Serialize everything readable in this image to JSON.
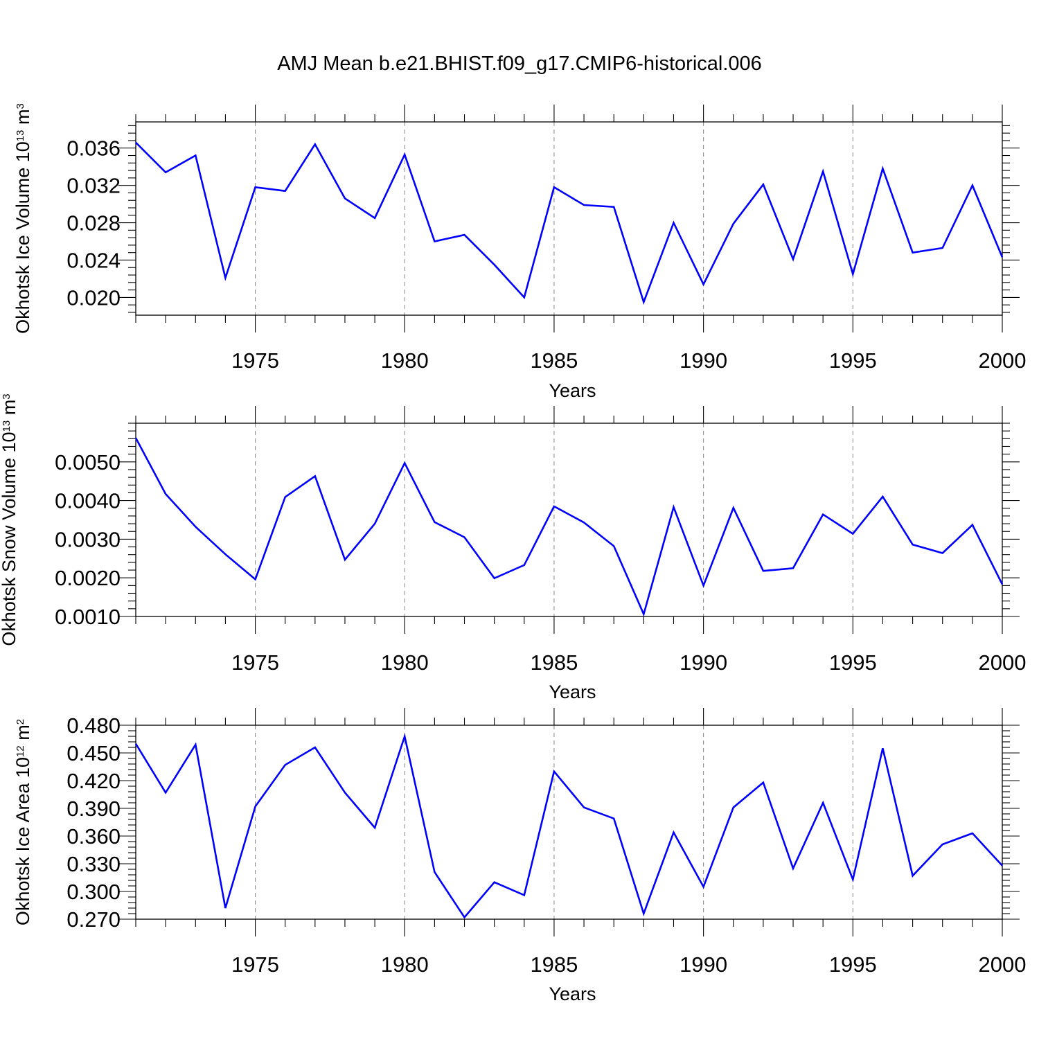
{
  "title": "AMJ Mean b.e21.BHIST.f09_g17.CMIP6-historical.006",
  "colors": {
    "line": "#0000ff",
    "grid": "#888888",
    "axis": "#000000"
  },
  "chart_data": [
    {
      "type": "line",
      "ylabel": "Okhotsk Ice Volume",
      "ylabel_unit": {
        "mantissa": "10",
        "exponent": "13",
        "unit": "m",
        "unit_exp": "3"
      },
      "xlabel": "Years",
      "xlim": [
        1971,
        2000
      ],
      "ylim": [
        0.0181,
        0.0388
      ],
      "x_ticks": [
        1975,
        1980,
        1985,
        1990,
        1995,
        2000
      ],
      "x_tick_labels": [
        "1975",
        "1980",
        "1985",
        "1990",
        "1995",
        "2000"
      ],
      "y_ticks": [
        0.02,
        0.024,
        0.028,
        0.032,
        0.036
      ],
      "y_tick_labels": [
        "0.020",
        "0.024",
        "0.028",
        "0.032",
        "0.036"
      ],
      "grid": "vertical dashed at major x ticks",
      "x": [
        1971,
        1972,
        1973,
        1974,
        1975,
        1976,
        1977,
        1978,
        1979,
        1980,
        1981,
        1982,
        1983,
        1984,
        1985,
        1986,
        1987,
        1988,
        1989,
        1990,
        1991,
        1992,
        1993,
        1994,
        1995,
        1996,
        1997,
        1998,
        1999,
        2000
      ],
      "values": [
        0.0366,
        0.0334,
        0.0352,
        0.0221,
        0.0318,
        0.0314,
        0.0364,
        0.0306,
        0.0285,
        0.0353,
        0.026,
        0.0267,
        0.0235,
        0.02,
        0.0318,
        0.0299,
        0.0297,
        0.0195,
        0.028,
        0.0214,
        0.0279,
        0.0321,
        0.0241,
        0.0335,
        0.0225,
        0.0338,
        0.0248,
        0.0253,
        0.032,
        0.0243
      ]
    },
    {
      "type": "line",
      "ylabel": "Okhotsk Snow Volume",
      "ylabel_unit": {
        "mantissa": "10",
        "exponent": "13",
        "unit": "m",
        "unit_exp": "3"
      },
      "xlabel": "Years",
      "xlim": [
        1971,
        2000
      ],
      "ylim": [
        0.001,
        0.006
      ],
      "x_ticks": [
        1975,
        1980,
        1985,
        1990,
        1995,
        2000
      ],
      "x_tick_labels": [
        "1975",
        "1980",
        "1985",
        "1990",
        "1995",
        "2000"
      ],
      "y_ticks": [
        0.001,
        0.002,
        0.003,
        0.004,
        0.005
      ],
      "y_tick_labels": [
        "0.0010",
        "0.0020",
        "0.0030",
        "0.0040",
        "0.0050"
      ],
      "grid": "vertical dashed at major x ticks",
      "x": [
        1971,
        1972,
        1973,
        1974,
        1975,
        1976,
        1977,
        1978,
        1979,
        1980,
        1981,
        1982,
        1983,
        1984,
        1985,
        1986,
        1987,
        1988,
        1989,
        1990,
        1991,
        1992,
        1993,
        1994,
        1995,
        1996,
        1997,
        1998,
        1999,
        2000
      ],
      "values": [
        0.00562,
        0.00417,
        0.00332,
        0.00261,
        0.00196,
        0.00409,
        0.00463,
        0.00247,
        0.0034,
        0.00497,
        0.00344,
        0.00305,
        0.00199,
        0.00233,
        0.00385,
        0.00343,
        0.00282,
        0.00106,
        0.00383,
        0.0018,
        0.00381,
        0.00218,
        0.00225,
        0.00364,
        0.00314,
        0.0041,
        0.00286,
        0.00264,
        0.00337,
        0.00183
      ]
    },
    {
      "type": "line",
      "ylabel": "Okhotsk Ice Area",
      "ylabel_unit": {
        "mantissa": "10",
        "exponent": "12",
        "unit": "m",
        "unit_exp": "2"
      },
      "xlabel": "Years",
      "xlim": [
        1971,
        2000
      ],
      "ylim": [
        0.27,
        0.48
      ],
      "x_ticks": [
        1975,
        1980,
        1985,
        1990,
        1995,
        2000
      ],
      "x_tick_labels": [
        "1975",
        "1980",
        "1985",
        "1990",
        "1995",
        "2000"
      ],
      "y_ticks": [
        0.27,
        0.3,
        0.33,
        0.36,
        0.39,
        0.42,
        0.45,
        0.48
      ],
      "y_tick_labels": [
        "0.270",
        "0.300",
        "0.330",
        "0.360",
        "0.390",
        "0.420",
        "0.450",
        "0.480"
      ],
      "grid": "vertical dashed at major x ticks",
      "x": [
        1971,
        1972,
        1973,
        1974,
        1975,
        1976,
        1977,
        1978,
        1979,
        1980,
        1981,
        1982,
        1983,
        1984,
        1985,
        1986,
        1987,
        1988,
        1989,
        1990,
        1991,
        1992,
        1993,
        1994,
        1995,
        1996,
        1997,
        1998,
        1999,
        2000
      ],
      "values": [
        0.46,
        0.407,
        0.459,
        0.282,
        0.392,
        0.437,
        0.456,
        0.407,
        0.369,
        0.468,
        0.321,
        0.272,
        0.31,
        0.296,
        0.43,
        0.391,
        0.379,
        0.276,
        0.364,
        0.305,
        0.391,
        0.418,
        0.325,
        0.396,
        0.313,
        0.455,
        0.317,
        0.351,
        0.363,
        0.328
      ]
    }
  ]
}
